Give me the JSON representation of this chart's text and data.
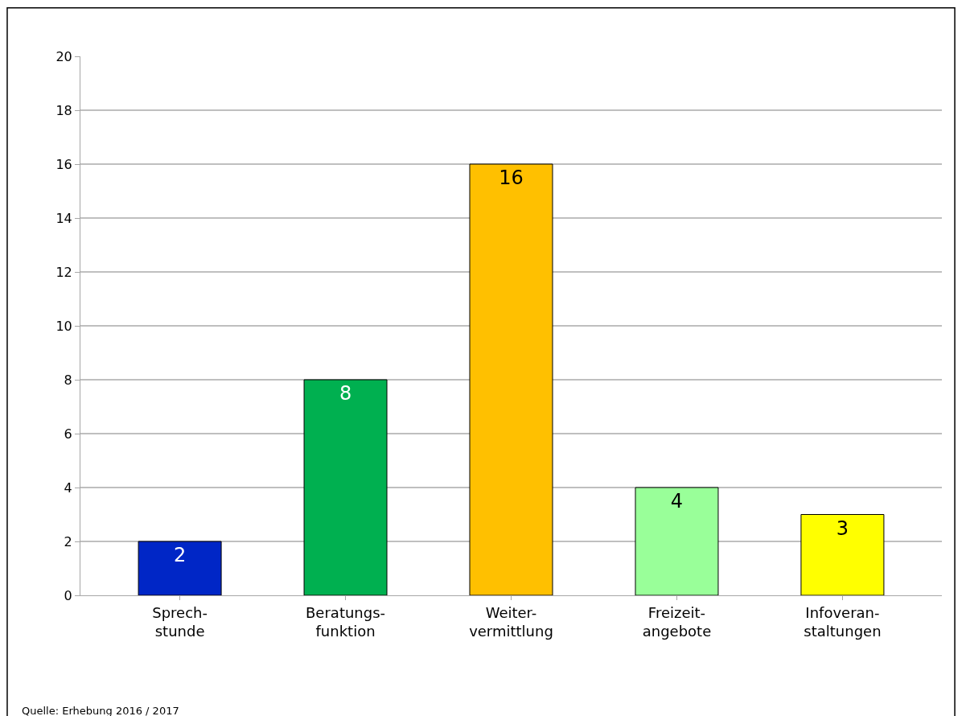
{
  "chart_data": {
    "type": "bar",
    "categories": [
      "Sprech-\nstunde",
      "Beratungs-\nfunktion",
      "Weiter-\nvermittlung",
      "Freizeit-\nangebote",
      "Infoveran-\nstaltungen"
    ],
    "values": [
      2,
      8,
      16,
      4,
      3
    ],
    "colors": [
      "#0026c6",
      "#00b050",
      "#ffc000",
      "#99ff99",
      "#ffff00"
    ],
    "ylim": [
      0,
      20
    ],
    "yticks": [
      0,
      2,
      4,
      6,
      8,
      10,
      12,
      14,
      16,
      18,
      20
    ],
    "grid": "y",
    "data_labels": true,
    "annotations": [
      "Quelle: Erhebung 2016 / 2017"
    ]
  }
}
